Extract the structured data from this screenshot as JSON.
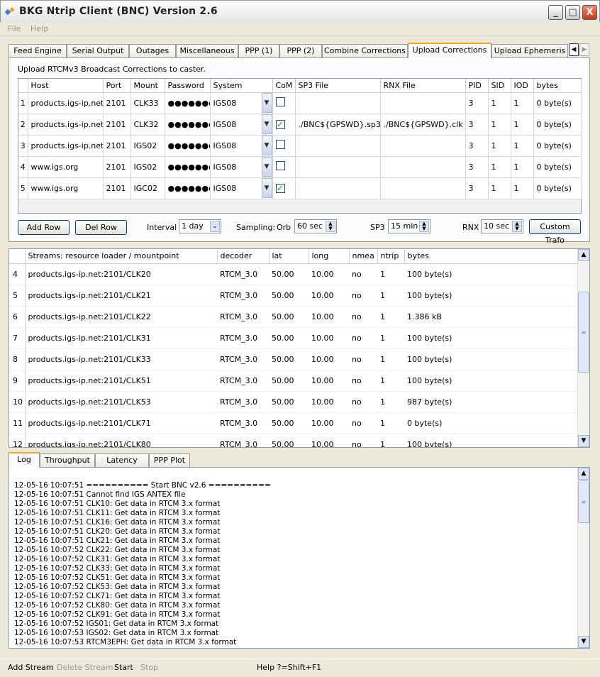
{
  "window": {
    "title": "BKG Ntrip Client (BNC) Version 2.6",
    "min": "_",
    "max": "□",
    "close": "X"
  },
  "menu": [
    "File",
    "Help"
  ],
  "tabs": [
    "Feed Engine",
    "Serial Output",
    "Outages",
    "Miscellaneous",
    "PPP (1)",
    "PPP (2)",
    "Combine Corrections",
    "Upload Corrections",
    "Upload Ephemeris"
  ],
  "active_tab": "Upload Corrections",
  "upload": {
    "description": "Upload RTCMv3 Broadcast Corrections to caster.",
    "columns": [
      "Host",
      "Port",
      "Mount",
      "Password",
      "System",
      "CoM",
      "SP3 File",
      "RNX File",
      "PID",
      "SID",
      "IOD",
      "bytes"
    ],
    "rows": [
      {
        "n": "1",
        "host": "products.igs-ip.net",
        "port": "2101",
        "mount": "CLK33",
        "password": "●●●●●●●●",
        "system": "IGS08",
        "com": false,
        "sp3": "",
        "rnx": "",
        "pid": "3",
        "sid": "1",
        "iod": "1",
        "bytes": "0 byte(s)"
      },
      {
        "n": "2",
        "host": "products.igs-ip.net",
        "port": "2101",
        "mount": "CLK32",
        "password": "●●●●●●●●",
        "system": "IGS08",
        "com": true,
        "sp3": "./BNC${GPSWD}.sp3",
        "rnx": "./BNC${GPSWD}.clk",
        "pid": "3",
        "sid": "1",
        "iod": "1",
        "bytes": "0 byte(s)"
      },
      {
        "n": "3",
        "host": "products.igs-ip.net",
        "port": "2101",
        "mount": "IGS02",
        "password": "●●●●●●●●",
        "system": "IGS08",
        "com": false,
        "sp3": "",
        "rnx": "",
        "pid": "3",
        "sid": "1",
        "iod": "1",
        "bytes": "0 byte(s)"
      },
      {
        "n": "4",
        "host": "www.igs.org",
        "port": "2101",
        "mount": "IGS02",
        "password": "●●●●●●●",
        "system": "IGS08",
        "com": false,
        "sp3": "",
        "rnx": "",
        "pid": "3",
        "sid": "1",
        "iod": "1",
        "bytes": "0 byte(s)"
      },
      {
        "n": "5",
        "host": "www.igs.org",
        "port": "2101",
        "mount": "IGC02",
        "password": "●●●●●●●",
        "system": "IGS08",
        "com": true,
        "sp3": "",
        "rnx": "",
        "pid": "3",
        "sid": "1",
        "iod": "1",
        "bytes": "0 byte(s)"
      }
    ],
    "add_row": "Add Row",
    "del_row": "Del Row",
    "interval_label": "Interval",
    "interval": "1 day",
    "sampling_label": "Sampling:",
    "orb_label": "Orb",
    "orb": "60 sec",
    "sp3_label": "SP3",
    "sp3": "15 min",
    "rnx_label": "RNX",
    "rnx": "10 sec",
    "custom_trafo": "Custom Trafo"
  },
  "streams": {
    "columns": [
      "Streams:   resource loader / mountpoint",
      "decoder",
      "lat",
      "long",
      "nmea",
      "ntrip",
      "bytes"
    ],
    "rows": [
      [
        "4",
        "products.igs-ip.net:2101/CLK20",
        "RTCM_3.0",
        "50.00",
        "10.00",
        "no",
        "1",
        "100 byte(s)"
      ],
      [
        "5",
        "products.igs-ip.net:2101/CLK21",
        "RTCM_3.0",
        "50.00",
        "10.00",
        "no",
        "1",
        "100 byte(s)"
      ],
      [
        "6",
        "products.igs-ip.net:2101/CLK22",
        "RTCM_3.0",
        "50.00",
        "10.00",
        "no",
        "1",
        "1.386 kB"
      ],
      [
        "7",
        "products.igs-ip.net:2101/CLK31",
        "RTCM_3.0",
        "50.00",
        "10.00",
        "no",
        "1",
        "100 byte(s)"
      ],
      [
        "8",
        "products.igs-ip.net:2101/CLK33",
        "RTCM_3.0",
        "50.00",
        "10.00",
        "no",
        "1",
        "100 byte(s)"
      ],
      [
        "9",
        "products.igs-ip.net:2101/CLK51",
        "RTCM_3.0",
        "50.00",
        "10.00",
        "no",
        "1",
        "100 byte(s)"
      ],
      [
        "10",
        "products.igs-ip.net:2101/CLK53",
        "RTCM_3.0",
        "50.00",
        "10.00",
        "no",
        "1",
        "987 byte(s)"
      ],
      [
        "11",
        "products.igs-ip.net:2101/CLK71",
        "RTCM_3.0",
        "50.00",
        "10.00",
        "no",
        "1",
        "0 byte(s)"
      ],
      [
        "12",
        "products.igs-ip.net:2101/CLK80",
        "RTCM_3.0",
        "50.00",
        "10.00",
        "no",
        "1",
        "100 byte(s)"
      ]
    ]
  },
  "log_tabs": [
    "Log",
    "Throughput",
    "Latency",
    "PPP Plot"
  ],
  "log_lines": [
    "12-05-16 10:07:51 ========== Start BNC v2.6 ==========",
    "12-05-16 10:07:51 Cannot find IGS ANTEX file",
    "12-05-16 10:07:51 CLK10: Get data in RTCM 3.x format",
    "12-05-16 10:07:51 CLK11: Get data in RTCM 3.x format",
    "12-05-16 10:07:51 CLK16: Get data in RTCM 3.x format",
    "12-05-16 10:07:51 CLK20: Get data in RTCM 3.x format",
    "12-05-16 10:07:51 CLK21: Get data in RTCM 3.x format",
    "12-05-16 10:07:52 CLK22: Get data in RTCM 3.x format",
    "12-05-16 10:07:52 CLK31: Get data in RTCM 3.x format",
    "12-05-16 10:07:52 CLK33: Get data in RTCM 3.x format",
    "12-05-16 10:07:52 CLK51: Get data in RTCM 3.x format",
    "12-05-16 10:07:52 CLK53: Get data in RTCM 3.x format",
    "12-05-16 10:07:52 CLK71: Get data in RTCM 3.x format",
    "12-05-16 10:07:52 CLK80: Get data in RTCM 3.x format",
    "12-05-16 10:07:52 CLK91: Get data in RTCM 3.x format",
    "12-05-16 10:07:52 IGS01: Get data in RTCM 3.x format",
    "12-05-16 10:07:53 IGS02: Get data in RTCM 3.x format",
    "12-05-16 10:07:53 RTCM3EPH: Get data in RTCM 3.x format"
  ],
  "status": {
    "add_stream": "Add Stream",
    "delete_stream": "Delete Stream",
    "start": "Start",
    "stop": "Stop",
    "help": "Help ?=Shift+F1"
  }
}
